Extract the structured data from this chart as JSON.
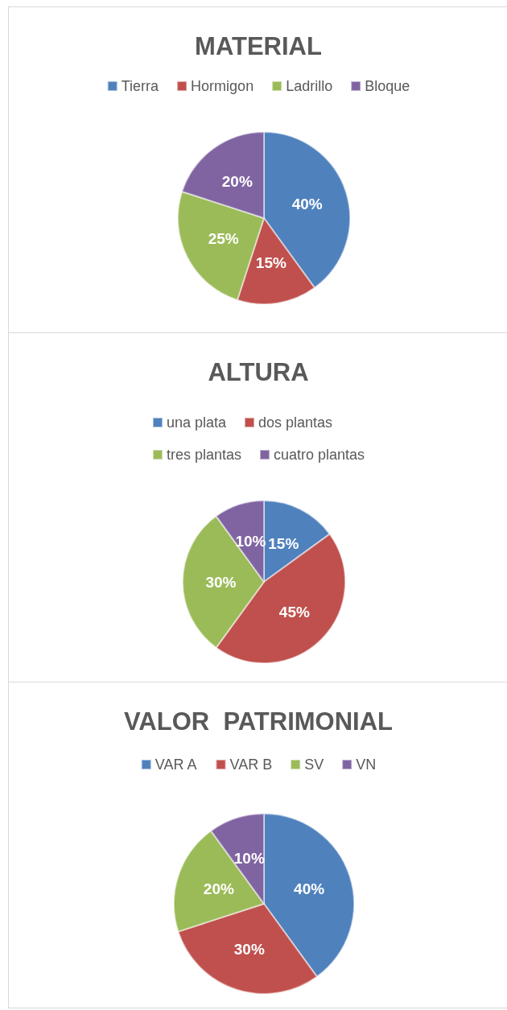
{
  "chart_data": [
    {
      "type": "pie",
      "title": "MATERIAL",
      "categories": [
        "Tierra",
        "Hormigon",
        "Ladrillo",
        "Bloque"
      ],
      "values": [
        40,
        15,
        25,
        20
      ],
      "value_labels": [
        "40%",
        "15%",
        "25%",
        "20%"
      ],
      "colors": [
        "#4f81bd",
        "#c0504d",
        "#9bbb59",
        "#8064a2"
      ],
      "legend": "top"
    },
    {
      "type": "pie",
      "title": "ALTURA",
      "categories": [
        "una plata",
        "dos plantas",
        "tres plantas",
        "cuatro plantas"
      ],
      "values": [
        15,
        45,
        30,
        10
      ],
      "value_labels": [
        "15%",
        "45%",
        "30%",
        "10%"
      ],
      "colors": [
        "#4f81bd",
        "#c0504d",
        "#9bbb59",
        "#8064a2"
      ],
      "legend": "top"
    },
    {
      "type": "pie",
      "title": "VALOR  PATRIMONIAL",
      "categories": [
        "VAR A",
        "VAR B",
        "SV",
        "VN"
      ],
      "values": [
        40,
        30,
        20,
        10
      ],
      "value_labels": [
        "40%",
        "30%",
        "20%",
        "10%"
      ],
      "colors": [
        "#4f81bd",
        "#c0504d",
        "#9bbb59",
        "#8064a2"
      ],
      "legend": "top"
    }
  ]
}
